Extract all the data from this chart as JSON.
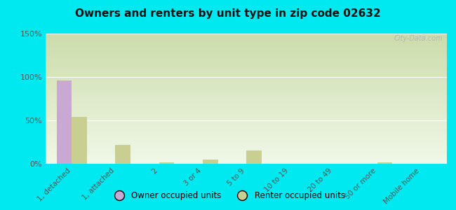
{
  "title": "Owners and renters by unit type in zip code 02632",
  "categories": [
    "1, detached",
    "1, attached",
    "2",
    "3 or 4",
    "5 to 9",
    "10 to 19",
    "20 to 49",
    "50 or more",
    "Mobile home"
  ],
  "owner_values": [
    96,
    0,
    0,
    0,
    0,
    0,
    0,
    0,
    0
  ],
  "renter_values": [
    54,
    22,
    2,
    5,
    15,
    0,
    0,
    2,
    0
  ],
  "owner_color": "#c9a8d4",
  "renter_color": "#c8cf90",
  "ylim": [
    0,
    150
  ],
  "yticks": [
    0,
    50,
    100,
    150
  ],
  "ytick_labels": [
    "0%",
    "50%",
    "100%",
    "150%"
  ],
  "grad_top": "#ccdcaa",
  "grad_bottom": "#f0f8e8",
  "bg_color": "#00e8f0",
  "owner_label": "Owner occupied units",
  "renter_label": "Renter occupied units",
  "watermark": "City-Data.com",
  "bar_width": 0.35
}
